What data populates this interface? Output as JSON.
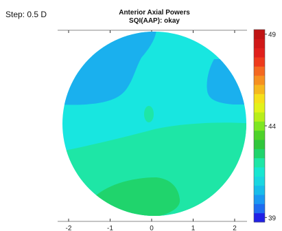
{
  "step_label": "Step: 0.5 D",
  "chart_data": {
    "type": "heatmap",
    "title": "Anterior Axial Powers",
    "subtitle": "SQI(AAP): okay",
    "x_ticks": [
      -2,
      -1,
      0,
      1,
      2
    ],
    "colorbar": {
      "min": 39,
      "max": 49.5,
      "step": 0.5,
      "ticks": [
        39,
        44,
        49
      ],
      "colors": [
        "#2020e6",
        "#1e6cf0",
        "#1a98f2",
        "#18bcea",
        "#1ad6e0",
        "#18e6d0",
        "#1ee6a6",
        "#20d46c",
        "#30c63c",
        "#4ed22a",
        "#7ee622",
        "#b8ee1a",
        "#e2f21a",
        "#f6e01a",
        "#f6b81e",
        "#f69020",
        "#f46820",
        "#ee3a1c",
        "#e0201c",
        "#d01818",
        "#c01414"
      ]
    },
    "regions": [
      {
        "name": "region-43-5",
        "value": 43.5
      },
      {
        "name": "region-42-5-upper-left",
        "value": 42.5
      },
      {
        "name": "region-42-5-right",
        "value": 42.5
      },
      {
        "name": "region-43-center",
        "value": 43
      },
      {
        "name": "region-44",
        "value": 44
      },
      {
        "name": "region-44-5",
        "value": 44.5
      }
    ]
  }
}
